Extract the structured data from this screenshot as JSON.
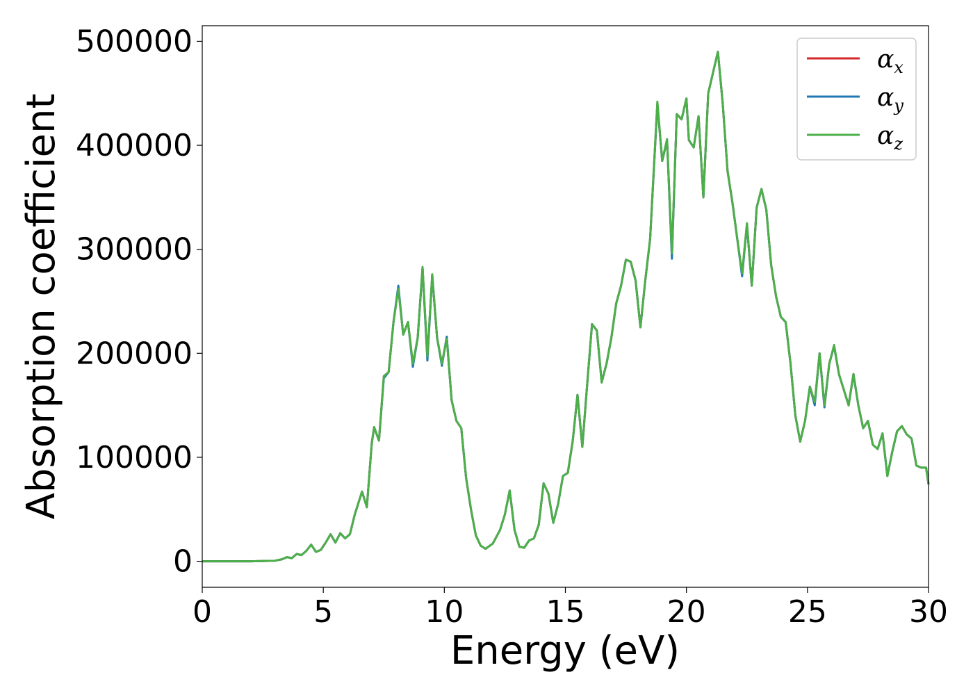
{
  "chart_data": {
    "type": "line",
    "title": "",
    "xlabel": "Energy (eV)",
    "ylabel": "Absorption coefficient",
    "xlim": [
      0,
      30
    ],
    "ylim": [
      -25000,
      515000
    ],
    "xticks": [
      0,
      5,
      10,
      15,
      20,
      25,
      30
    ],
    "yticks": [
      0,
      100000,
      200000,
      300000,
      400000,
      500000
    ],
    "grid": false,
    "legend_position": "top-right",
    "x": [
      0,
      1,
      2,
      3,
      3.3,
      3.5,
      3.7,
      3.9,
      4.1,
      4.3,
      4.5,
      4.7,
      4.9,
      5.1,
      5.3,
      5.5,
      5.7,
      5.9,
      6.1,
      6.3,
      6.6,
      6.8,
      7.0,
      7.1,
      7.3,
      7.5,
      7.7,
      7.9,
      8.1,
      8.3,
      8.5,
      8.7,
      8.9,
      9.1,
      9.3,
      9.5,
      9.7,
      9.9,
      10.1,
      10.3,
      10.5,
      10.7,
      10.9,
      11.1,
      11.3,
      11.5,
      11.7,
      12.0,
      12.3,
      12.5,
      12.7,
      12.9,
      13.1,
      13.3,
      13.5,
      13.7,
      13.9,
      14.1,
      14.3,
      14.5,
      14.7,
      14.9,
      15.1,
      15.3,
      15.5,
      15.7,
      15.9,
      16.1,
      16.3,
      16.5,
      16.7,
      16.9,
      17.1,
      17.3,
      17.5,
      17.7,
      17.9,
      18.1,
      18.3,
      18.5,
      18.8,
      19.0,
      19.2,
      19.4,
      19.6,
      19.8,
      20.0,
      20.1,
      20.3,
      20.5,
      20.7,
      20.9,
      21.1,
      21.3,
      21.5,
      21.7,
      21.9,
      22.1,
      22.3,
      22.5,
      22.7,
      22.9,
      23.1,
      23.3,
      23.5,
      23.7,
      23.9,
      24.1,
      24.3,
      24.5,
      24.7,
      24.9,
      25.1,
      25.3,
      25.5,
      25.7,
      25.9,
      26.1,
      26.3,
      26.5,
      26.7,
      26.9,
      27.1,
      27.3,
      27.5,
      27.7,
      27.9,
      28.1,
      28.3,
      28.5,
      28.7,
      28.9,
      29.1,
      29.3,
      29.5,
      29.7,
      29.9,
      30.0
    ],
    "series": [
      {
        "name": "α_x",
        "color": "#d62728",
        "values": [
          0,
          0,
          0,
          500,
          2000,
          4000,
          3000,
          7000,
          6000,
          10000,
          16000,
          9000,
          11000,
          18000,
          26000,
          18000,
          27000,
          22000,
          26000,
          45000,
          67000,
          52000,
          113000,
          129000,
          116000,
          178000,
          182000,
          230000,
          263000,
          218000,
          230000,
          189000,
          215000,
          282000,
          196000,
          275000,
          215000,
          190000,
          215000,
          155000,
          135000,
          128000,
          80000,
          50000,
          25000,
          15000,
          12000,
          17000,
          30000,
          45000,
          68000,
          30000,
          14000,
          13000,
          20000,
          22000,
          35000,
          75000,
          65000,
          37000,
          55000,
          82000,
          85000,
          115000,
          160000,
          110000,
          170000,
          228000,
          222000,
          172000,
          190000,
          215000,
          248000,
          265000,
          290000,
          288000,
          270000,
          225000,
          270000,
          310000,
          440000,
          385000,
          405000,
          295000,
          430000,
          425000,
          445000,
          405000,
          398000,
          428000,
          350000,
          450000,
          470000,
          490000,
          440000,
          375000,
          345000,
          310000,
          276000,
          324000,
          265000,
          340000,
          358000,
          338000,
          285000,
          255000,
          235000,
          230000,
          190000,
          140000,
          115000,
          135000,
          168000,
          152000,
          200000,
          149000,
          190000,
          207000,
          180000,
          165000,
          150000,
          180000,
          150000,
          128000,
          135000,
          112000,
          108000,
          123000,
          82000,
          105000,
          125000,
          130000,
          122000,
          118000,
          92000,
          90000,
          90000,
          74000
        ]
      },
      {
        "name": "α_y",
        "color": "#1f77b4",
        "values": [
          0,
          0,
          0,
          500,
          2000,
          4000,
          3000,
          7000,
          6000,
          10000,
          16000,
          9000,
          11000,
          18000,
          26000,
          18000,
          27000,
          22000,
          26000,
          45000,
          67000,
          52000,
          113000,
          129000,
          116000,
          176000,
          182000,
          230000,
          265000,
          218000,
          230000,
          187000,
          215000,
          282000,
          193000,
          275000,
          215000,
          188000,
          216000,
          155000,
          135000,
          128000,
          80000,
          50000,
          25000,
          15000,
          12000,
          17000,
          30000,
          45000,
          68000,
          30000,
          14000,
          13000,
          20000,
          22000,
          35000,
          75000,
          65000,
          37000,
          55000,
          82000,
          85000,
          115000,
          160000,
          110000,
          170000,
          228000,
          222000,
          172000,
          190000,
          215000,
          248000,
          265000,
          290000,
          288000,
          270000,
          225000,
          270000,
          310000,
          440000,
          385000,
          405000,
          291000,
          430000,
          425000,
          445000,
          405000,
          398000,
          428000,
          350000,
          450000,
          470000,
          490000,
          440000,
          375000,
          345000,
          310000,
          274000,
          324000,
          265000,
          340000,
          358000,
          338000,
          285000,
          255000,
          235000,
          230000,
          190000,
          140000,
          115000,
          135000,
          168000,
          150000,
          200000,
          148000,
          190000,
          207000,
          180000,
          165000,
          150000,
          180000,
          150000,
          128000,
          135000,
          112000,
          108000,
          123000,
          82000,
          105000,
          125000,
          130000,
          122000,
          118000,
          92000,
          90000,
          90000,
          74000
        ]
      },
      {
        "name": "α_z",
        "color": "#4daf4a",
        "values": [
          0,
          0,
          0,
          500,
          2000,
          4000,
          3000,
          7000,
          6000,
          10000,
          16000,
          9000,
          11000,
          18000,
          26000,
          18000,
          27000,
          22000,
          26000,
          45000,
          67000,
          52000,
          113000,
          129000,
          116000,
          178000,
          182000,
          230000,
          262000,
          218000,
          230000,
          190000,
          215000,
          283000,
          197000,
          276000,
          215000,
          190000,
          214000,
          155000,
          135000,
          128000,
          80000,
          50000,
          25000,
          15000,
          12000,
          17000,
          30000,
          45000,
          68000,
          30000,
          14000,
          13000,
          20000,
          22000,
          35000,
          75000,
          65000,
          37000,
          55000,
          82000,
          85000,
          115000,
          160000,
          110000,
          170000,
          228000,
          222000,
          172000,
          190000,
          215000,
          248000,
          265000,
          290000,
          288000,
          270000,
          225000,
          270000,
          310000,
          442000,
          385000,
          406000,
          296000,
          430000,
          425000,
          445000,
          405000,
          398000,
          428000,
          350000,
          450000,
          470000,
          490000,
          440000,
          375000,
          345000,
          310000,
          277000,
          325000,
          265000,
          340000,
          358000,
          338000,
          285000,
          255000,
          235000,
          230000,
          190000,
          140000,
          115000,
          135000,
          168000,
          153000,
          200000,
          150000,
          190000,
          208000,
          180000,
          165000,
          150000,
          180000,
          150000,
          128000,
          135000,
          112000,
          108000,
          123000,
          82000,
          105000,
          125000,
          130000,
          122000,
          118000,
          92000,
          90000,
          90000,
          74000
        ]
      }
    ]
  },
  "legend": {
    "items": [
      {
        "symbol": "α",
        "sub": "x",
        "color": "#d62728"
      },
      {
        "symbol": "α",
        "sub": "y",
        "color": "#1f77b4"
      },
      {
        "symbol": "α",
        "sub": "z",
        "color": "#4daf4a"
      }
    ]
  }
}
